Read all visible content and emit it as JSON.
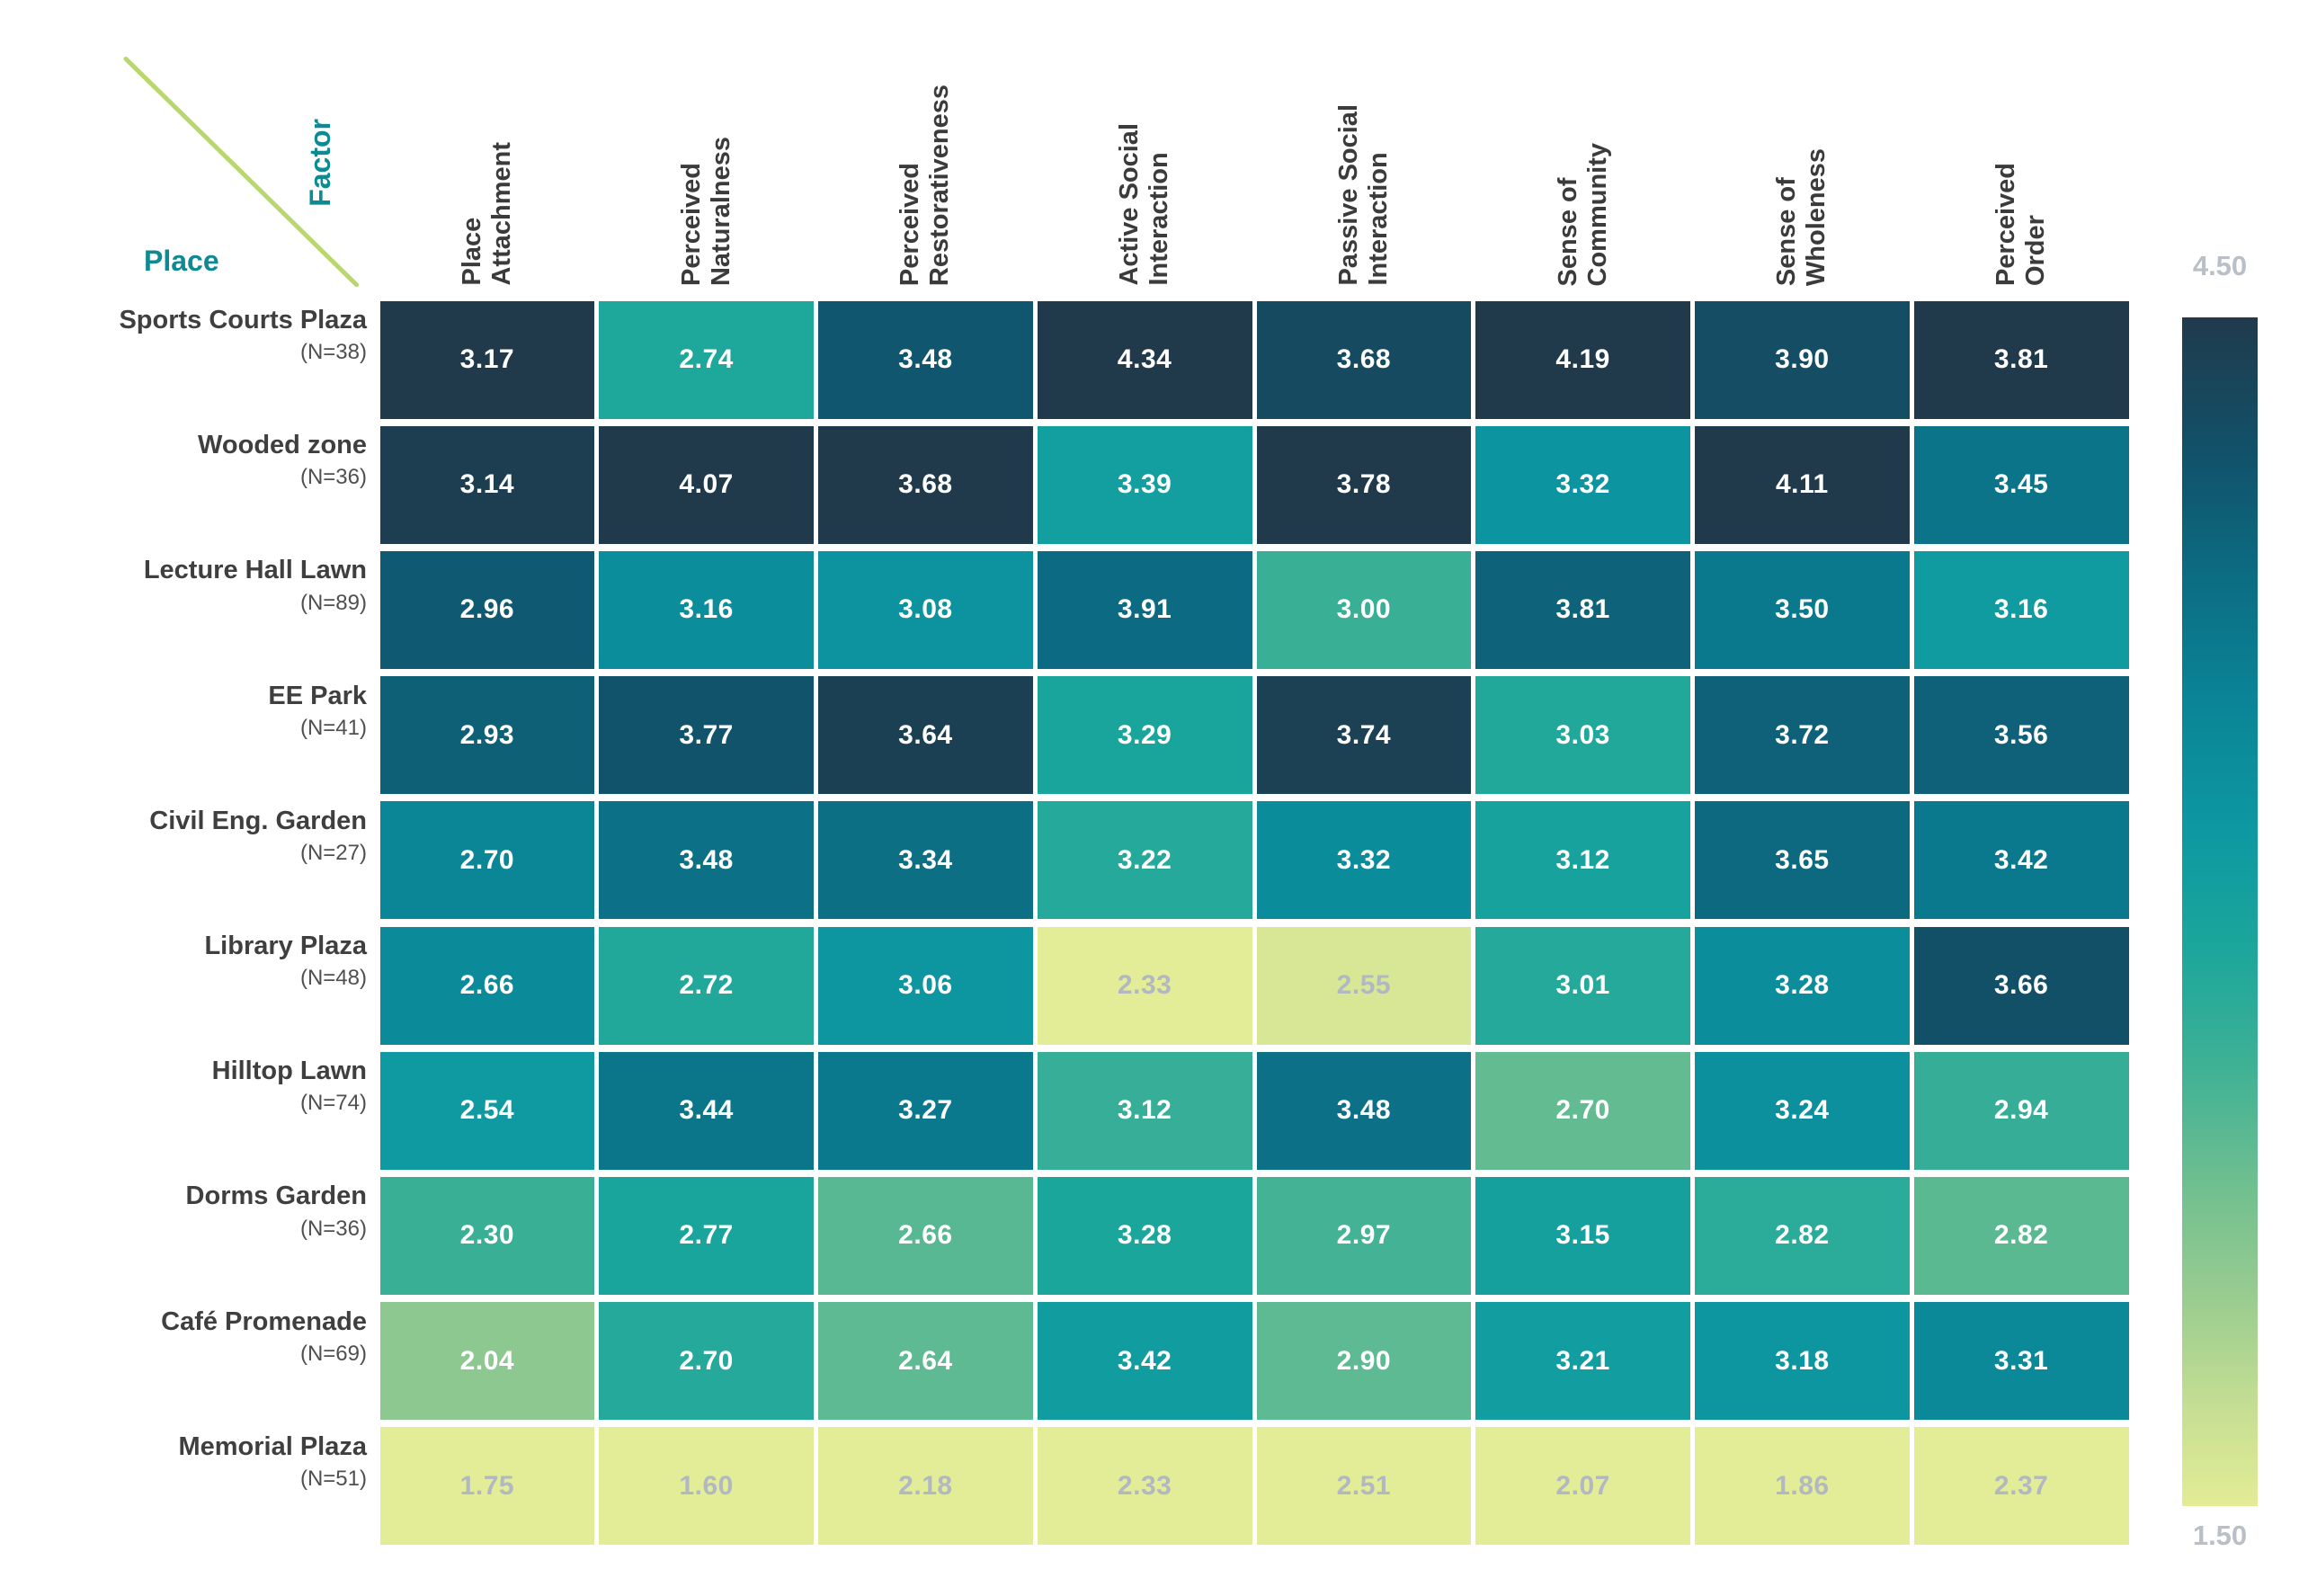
{
  "axis_labels": {
    "row_axis": "Place",
    "col_axis": "Factor"
  },
  "colorbar": {
    "max_label": "4.50",
    "min_label": "1.50"
  },
  "colors": {
    "accent_teal": "#0e8a93",
    "diagonal_line_green": "#b9d76e",
    "header_text": "#3b3b3b",
    "row_label_text": "#3f3f3f",
    "row_n_text": "#4f4f4f",
    "cell_text_light": "#ffffff",
    "cell_text_muted": "#b2b8c2",
    "colorbar_label": "#b9bfc6",
    "scale_stops": [
      "#e3ec96",
      "#c6df93",
      "#9ccd90",
      "#6fbf90",
      "#3fb195",
      "#1ba69c",
      "#0d98a2",
      "#0a8496",
      "#0c6d83",
      "#10536b",
      "#203a4c"
    ],
    "scale_stop_positions": [
      0,
      0.08,
      0.17,
      0.27,
      0.37,
      0.47,
      0.57,
      0.68,
      0.78,
      0.88,
      1
    ]
  },
  "chart_data": {
    "type": "heatmap",
    "normalization": "per-column",
    "value_range_labels": {
      "min": "1.50",
      "max": "4.50"
    },
    "columns": [
      "Place\nAttachment",
      "Perceived\nNaturalness",
      "Perceived\nRestorativeness",
      "Active Social\nInteraction",
      "Passive Social\nInteraction",
      "Sense of\nCommunity",
      "Sense of\nWholeness",
      "Perceived\nOrder"
    ],
    "rows": [
      {
        "name": "Sports Courts Plaza",
        "n_label": "(N=38)",
        "values": [
          3.17,
          2.74,
          3.48,
          4.34,
          3.68,
          4.19,
          3.9,
          3.81
        ]
      },
      {
        "name": "Wooded zone",
        "n_label": "(N=36)",
        "values": [
          3.14,
          4.07,
          3.68,
          3.39,
          3.78,
          3.32,
          4.11,
          3.45
        ]
      },
      {
        "name": "Lecture Hall Lawn",
        "n_label": "(N=89)",
        "values": [
          2.96,
          3.16,
          3.08,
          3.91,
          3.0,
          3.81,
          3.5,
          3.16
        ]
      },
      {
        "name": "EE Park",
        "n_label": "(N=41)",
        "values": [
          2.93,
          3.77,
          3.64,
          3.29,
          3.74,
          3.03,
          3.72,
          3.56
        ]
      },
      {
        "name": "Civil Eng. Garden",
        "n_label": "(N=27)",
        "values": [
          2.7,
          3.48,
          3.34,
          3.22,
          3.32,
          3.12,
          3.65,
          3.42
        ]
      },
      {
        "name": "Library Plaza",
        "n_label": "(N=48)",
        "values": [
          2.66,
          2.72,
          3.06,
          2.33,
          2.55,
          3.01,
          3.28,
          3.66
        ]
      },
      {
        "name": "Hilltop Lawn",
        "n_label": "(N=74)",
        "values": [
          2.54,
          3.44,
          3.27,
          3.12,
          3.48,
          2.7,
          3.24,
          2.94
        ]
      },
      {
        "name": "Dorms Garden",
        "n_label": "(N=36)",
        "values": [
          2.3,
          2.77,
          2.66,
          3.28,
          2.97,
          3.15,
          2.82,
          2.82
        ]
      },
      {
        "name": "Café Promenade",
        "n_label": "(N=69)",
        "values": [
          2.04,
          2.7,
          2.64,
          3.42,
          2.9,
          3.21,
          3.18,
          3.31
        ]
      },
      {
        "name": "Memorial Plaza",
        "n_label": "(N=51)",
        "values": [
          1.75,
          1.6,
          2.18,
          2.33,
          2.51,
          2.07,
          1.86,
          2.37
        ]
      }
    ]
  }
}
